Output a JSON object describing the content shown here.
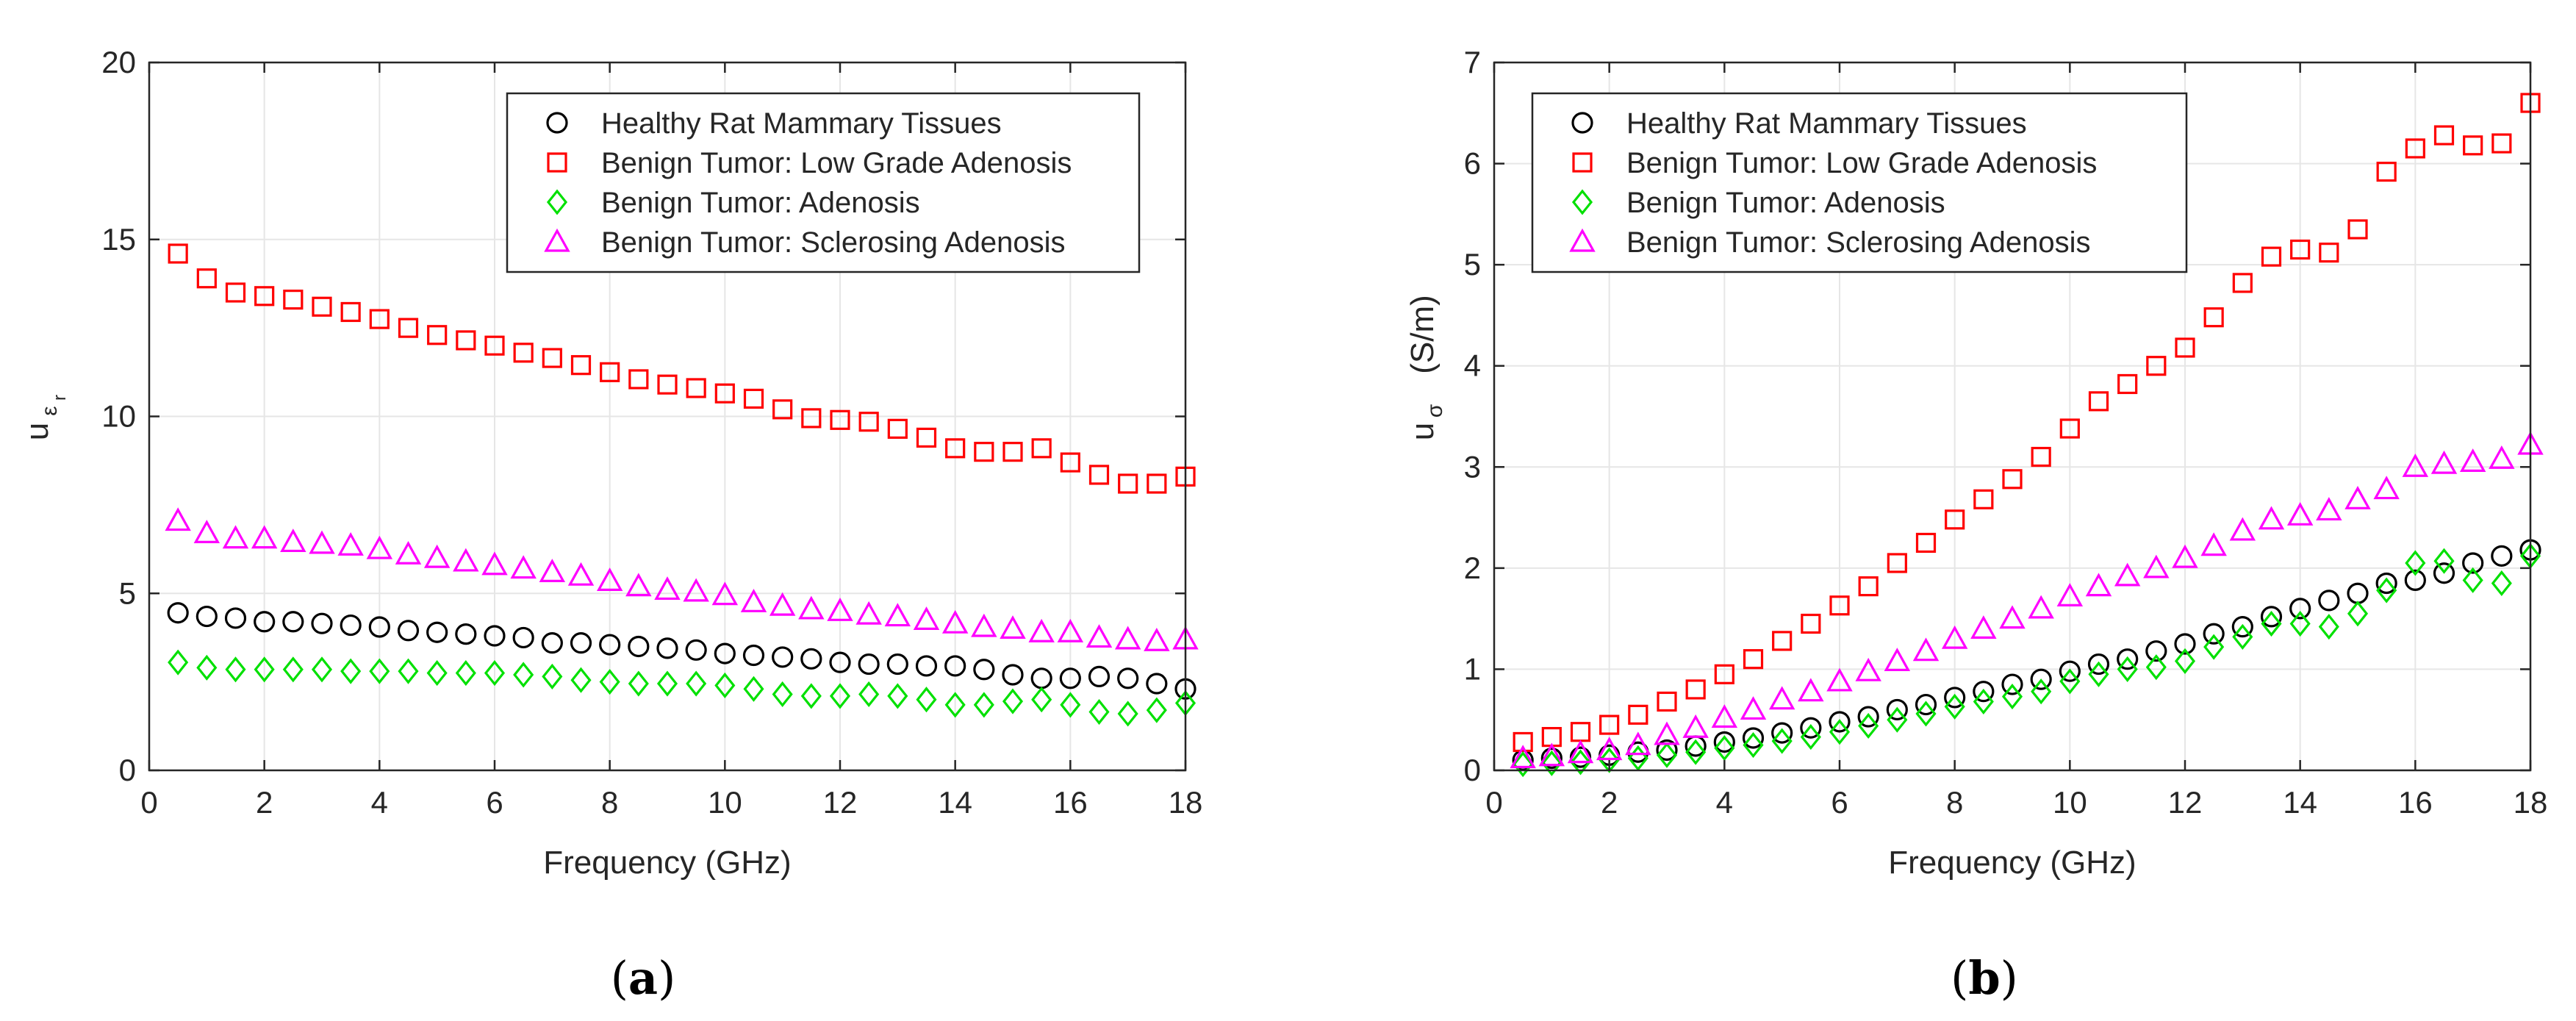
{
  "figure": {
    "panel_labels": [
      "(a)",
      "(b)"
    ],
    "panel_letters": [
      "a",
      "b"
    ]
  },
  "legend_entries": [
    "Healthy Rat Mammary Tissues",
    "Benign Tumor: Low Grade Adenosis",
    "Benign Tumor: Adenosis",
    "Benign Tumor: Sclerosing Adenosis"
  ],
  "colors": {
    "healthy": "#000000",
    "low_grade": "#ff0000",
    "adenosis": "#00e000",
    "sclerosing": "#ff00ff",
    "grid": "#e6e6e6",
    "axis": "#262626"
  },
  "chart_data": [
    {
      "type": "scatter",
      "panel": "a",
      "title": "",
      "xlabel": "Frequency (GHz)",
      "ylabel_main": "u",
      "ylabel_sub": "ε",
      "ylabel_subsub": "r",
      "xlim": [
        0,
        18
      ],
      "ylim": [
        0,
        20
      ],
      "xticks": [
        0,
        2,
        4,
        6,
        8,
        10,
        12,
        14,
        16,
        18
      ],
      "yticks": [
        0,
        5,
        10,
        15,
        20
      ],
      "grid": true,
      "legend_position": "top-right",
      "x": [
        0.5,
        1,
        1.5,
        2,
        2.5,
        3,
        3.5,
        4,
        4.5,
        5,
        5.5,
        6,
        6.5,
        7,
        7.5,
        8,
        8.5,
        9,
        9.5,
        10,
        10.5,
        11,
        11.5,
        12,
        12.5,
        13,
        13.5,
        14,
        14.5,
        15,
        15.5,
        16,
        16.5,
        17,
        17.5,
        18
      ],
      "series": [
        {
          "name": "Healthy Rat Mammary Tissues",
          "marker": "circle",
          "color": "#000000",
          "values": [
            4.45,
            4.35,
            4.3,
            4.2,
            4.2,
            4.15,
            4.1,
            4.05,
            3.95,
            3.9,
            3.85,
            3.8,
            3.75,
            3.6,
            3.6,
            3.55,
            3.5,
            3.45,
            3.4,
            3.3,
            3.25,
            3.2,
            3.15,
            3.05,
            3.0,
            3.0,
            2.95,
            2.95,
            2.85,
            2.7,
            2.6,
            2.6,
            2.65,
            2.6,
            2.45,
            2.3
          ]
        },
        {
          "name": "Benign Tumor: Low Grade Adenosis",
          "marker": "square",
          "color": "#ff0000",
          "values": [
            14.6,
            13.9,
            13.5,
            13.4,
            13.3,
            13.1,
            12.95,
            12.75,
            12.5,
            12.3,
            12.15,
            12.0,
            11.8,
            11.65,
            11.45,
            11.25,
            11.05,
            10.9,
            10.8,
            10.65,
            10.5,
            10.2,
            9.95,
            9.9,
            9.85,
            9.65,
            9.4,
            9.1,
            9.0,
            9.0,
            9.1,
            8.7,
            8.35,
            8.1,
            8.1,
            8.3
          ]
        },
        {
          "name": "Benign Tumor: Adenosis",
          "marker": "diamond",
          "color": "#00e000",
          "values": [
            3.05,
            2.9,
            2.85,
            2.85,
            2.85,
            2.85,
            2.8,
            2.8,
            2.8,
            2.75,
            2.75,
            2.75,
            2.7,
            2.65,
            2.55,
            2.5,
            2.45,
            2.45,
            2.45,
            2.4,
            2.3,
            2.15,
            2.1,
            2.1,
            2.15,
            2.1,
            2.0,
            1.85,
            1.85,
            1.95,
            2.0,
            1.85,
            1.65,
            1.6,
            1.7,
            1.9
          ]
        },
        {
          "name": "Benign Tumor: Sclerosing Adenosis",
          "marker": "triangle",
          "color": "#ff00ff",
          "values": [
            7.05,
            6.7,
            6.55,
            6.55,
            6.45,
            6.4,
            6.35,
            6.25,
            6.1,
            6.0,
            5.9,
            5.8,
            5.7,
            5.6,
            5.5,
            5.35,
            5.2,
            5.1,
            5.05,
            4.95,
            4.75,
            4.65,
            4.55,
            4.5,
            4.4,
            4.35,
            4.25,
            4.15,
            4.05,
            4.0,
            3.9,
            3.9,
            3.75,
            3.7,
            3.65,
            3.7
          ]
        }
      ]
    },
    {
      "type": "scatter",
      "panel": "b",
      "title": "",
      "xlabel": "Frequency (GHz)",
      "ylabel_main": "u",
      "ylabel_sub": "σ",
      "ylabel_unit": "(S/m)",
      "xlim": [
        0,
        18
      ],
      "ylim": [
        0,
        7
      ],
      "xticks": [
        0,
        2,
        4,
        6,
        8,
        10,
        12,
        14,
        16,
        18
      ],
      "yticks": [
        0,
        1,
        2,
        3,
        4,
        5,
        6,
        7
      ],
      "grid": true,
      "legend_position": "top-left",
      "x": [
        0.5,
        1,
        1.5,
        2,
        2.5,
        3,
        3.5,
        4,
        4.5,
        5,
        5.5,
        6,
        6.5,
        7,
        7.5,
        8,
        8.5,
        9,
        9.5,
        10,
        10.5,
        11,
        11.5,
        12,
        12.5,
        13,
        13.5,
        14,
        14.5,
        15,
        15.5,
        16,
        16.5,
        17,
        17.5,
        18
      ],
      "series": [
        {
          "name": "Healthy Rat Mammary Tissues",
          "marker": "circle",
          "color": "#000000",
          "values": [
            0.1,
            0.12,
            0.13,
            0.15,
            0.18,
            0.2,
            0.24,
            0.28,
            0.32,
            0.37,
            0.42,
            0.48,
            0.53,
            0.6,
            0.65,
            0.72,
            0.78,
            0.85,
            0.9,
            0.98,
            1.05,
            1.1,
            1.18,
            1.25,
            1.35,
            1.42,
            1.52,
            1.6,
            1.68,
            1.75,
            1.85,
            1.88,
            1.95,
            2.05,
            2.12,
            2.18
          ]
        },
        {
          "name": "Benign Tumor: Low Grade Adenosis",
          "marker": "square",
          "color": "#ff0000",
          "values": [
            0.28,
            0.33,
            0.38,
            0.45,
            0.55,
            0.68,
            0.8,
            0.95,
            1.1,
            1.28,
            1.45,
            1.63,
            1.82,
            2.05,
            2.25,
            2.48,
            2.68,
            2.88,
            3.1,
            3.38,
            3.65,
            3.82,
            4.0,
            4.18,
            4.48,
            4.82,
            5.08,
            5.15,
            5.12,
            5.35,
            5.92,
            6.15,
            6.28,
            6.18,
            6.2,
            6.6
          ]
        },
        {
          "name": "Benign Tumor: Adenosis",
          "marker": "diamond",
          "color": "#00e000",
          "values": [
            0.06,
            0.07,
            0.08,
            0.1,
            0.12,
            0.15,
            0.18,
            0.22,
            0.25,
            0.29,
            0.33,
            0.38,
            0.44,
            0.5,
            0.56,
            0.63,
            0.68,
            0.73,
            0.78,
            0.88,
            0.95,
            1.0,
            1.02,
            1.08,
            1.22,
            1.32,
            1.45,
            1.45,
            1.42,
            1.55,
            1.78,
            2.05,
            2.07,
            1.88,
            1.85,
            2.12
          ]
        },
        {
          "name": "Benign Tumor: Sclerosing Adenosis",
          "marker": "triangle",
          "color": "#ff00ff",
          "values": [
            0.12,
            0.14,
            0.17,
            0.2,
            0.25,
            0.35,
            0.42,
            0.52,
            0.6,
            0.7,
            0.78,
            0.88,
            0.98,
            1.08,
            1.18,
            1.3,
            1.4,
            1.5,
            1.6,
            1.72,
            1.82,
            1.92,
            2.0,
            2.1,
            2.22,
            2.37,
            2.48,
            2.52,
            2.57,
            2.68,
            2.78,
            3.0,
            3.03,
            3.05,
            3.08,
            3.22
          ]
        }
      ]
    }
  ]
}
